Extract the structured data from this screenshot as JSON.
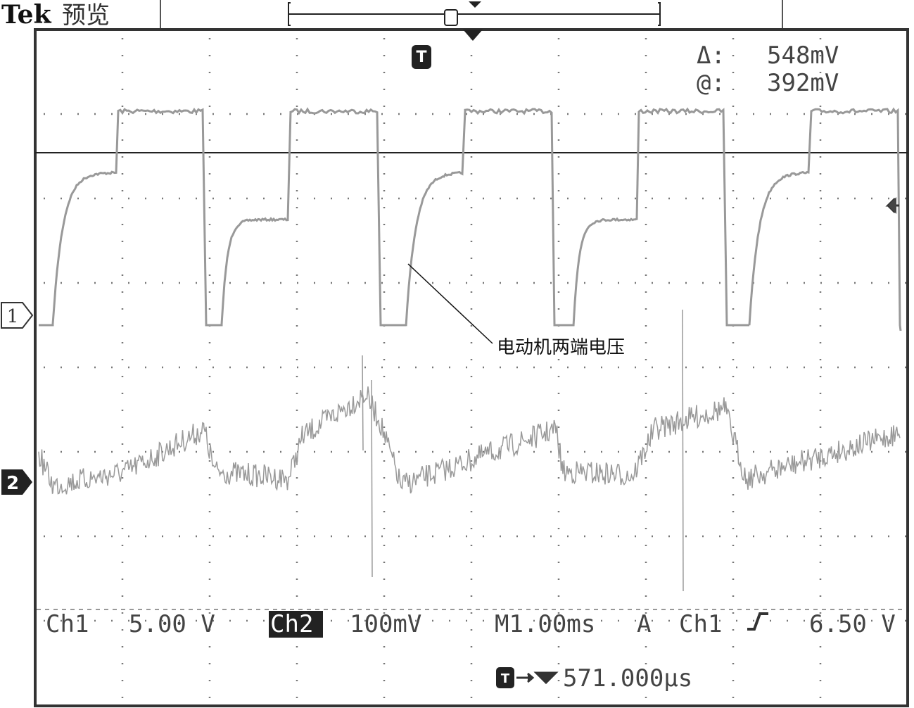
{
  "header": {
    "brand": "Tek",
    "mode": "预览"
  },
  "trigger_marker": "T",
  "cursor": {
    "delta_label": "Δ:",
    "delta": "548mV",
    "at_label": "@:",
    "at": "392mV"
  },
  "channel_markers": [
    "1",
    "2"
  ],
  "annotation": "电动机两端电压",
  "readout": {
    "ch1_label": "Ch1",
    "ch1_scale": "5.00 V",
    "ch2_label": "Ch2",
    "ch2_scale": "100mV",
    "timebase": "M1.00ms",
    "trigger_mode": "A",
    "trigger_source": "Ch1",
    "trigger_level": "6.50 V",
    "trigger_position": "571.000μs"
  }
}
